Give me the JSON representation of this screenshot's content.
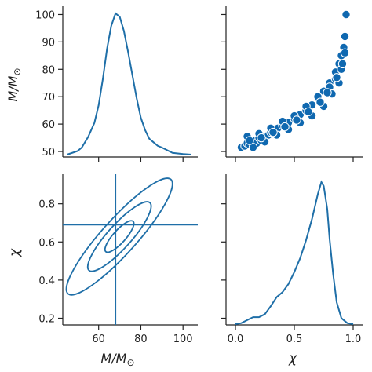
{
  "chart_data": {
    "type": "pairplot",
    "variables": [
      "M/M☉",
      "χ"
    ],
    "line_color": "#1f6fa8",
    "marker_color": "#0f68b0",
    "panels": [
      {
        "id": "mass-kde",
        "type": "line",
        "x": [
          45,
          50,
          52,
          55,
          58,
          60,
          62,
          64,
          66,
          68,
          70,
          72,
          74,
          76,
          78,
          80,
          82,
          84,
          86,
          88,
          90,
          95,
          100,
          104
        ],
        "density": [
          0.0,
          0.002,
          0.004,
          0.01,
          0.018,
          0.028,
          0.043,
          0.06,
          0.073,
          0.08,
          0.078,
          0.07,
          0.058,
          0.045,
          0.032,
          0.021,
          0.014,
          0.009,
          0.007,
          0.005,
          0.004,
          0.001,
          0.0003,
          0.0
        ],
        "xlim": [
          43,
          107
        ],
        "xticks": [
          60,
          80,
          100
        ],
        "ylim": [
          48,
          103
        ],
        "yticks": [
          50,
          60,
          70,
          80,
          90,
          100
        ],
        "ylabel": "M/M☉"
      },
      {
        "id": "mass-spin-scatter",
        "type": "scatter",
        "x": [
          0.05,
          0.08,
          0.1,
          0.12,
          0.15,
          0.18,
          0.2,
          0.22,
          0.25,
          0.28,
          0.3,
          0.33,
          0.36,
          0.4,
          0.45,
          0.5,
          0.55,
          0.6,
          0.65,
          0.7,
          0.75,
          0.8,
          0.85,
          0.88,
          0.9,
          0.92,
          0.93,
          0.94,
          0.1,
          0.2,
          0.3,
          0.4,
          0.5,
          0.6,
          0.7,
          0.8,
          0.85,
          0.9,
          0.15,
          0.25,
          0.35,
          0.45,
          0.55,
          0.65,
          0.75,
          0.82,
          0.88,
          0.91,
          0.93,
          0.12,
          0.22,
          0.32,
          0.42,
          0.52,
          0.62,
          0.72,
          0.78,
          0.86
        ],
        "y": [
          51.5,
          52,
          53,
          52.5,
          54,
          53,
          55,
          54,
          55.5,
          56,
          57,
          58,
          58.5,
          59.5,
          60.5,
          62,
          63.5,
          65,
          67,
          69.5,
          72,
          75,
          79,
          82,
          85,
          88,
          92,
          100,
          55.5,
          56.5,
          58.5,
          61,
          63,
          66.5,
          70,
          73.5,
          76.5,
          80,
          51.5,
          53.5,
          56,
          58,
          60.5,
          63,
          66.5,
          71,
          75,
          82,
          86,
          54,
          55,
          57,
          59,
          61.5,
          64.5,
          68,
          71.5,
          77
        ],
        "xlim": [
          -0.08,
          1.08
        ],
        "ylim": [
          48,
          103
        ]
      },
      {
        "id": "spin-mass-contour",
        "type": "contour",
        "levels": 3,
        "median": {
          "x": 68,
          "y": 0.69
        },
        "xlim": [
          43,
          107
        ],
        "xticks": [
          60,
          80,
          100
        ],
        "xlabel": "M/M☉",
        "ylim": [
          0.165,
          0.955
        ],
        "yticks": [
          0.2,
          0.4,
          0.6,
          0.8
        ],
        "ylabel": "χ"
      },
      {
        "id": "spin-kde",
        "type": "line",
        "x": [
          0.0,
          0.05,
          0.1,
          0.15,
          0.2,
          0.25,
          0.3,
          0.35,
          0.4,
          0.45,
          0.5,
          0.55,
          0.6,
          0.65,
          0.7,
          0.73,
          0.75,
          0.78,
          0.8,
          0.83,
          0.86,
          0.9,
          0.95,
          1.0
        ],
        "density": [
          0.0,
          0.01,
          0.04,
          0.07,
          0.07,
          0.1,
          0.18,
          0.27,
          0.32,
          0.4,
          0.52,
          0.66,
          0.84,
          1.05,
          1.3,
          1.42,
          1.38,
          1.15,
          0.85,
          0.5,
          0.22,
          0.06,
          0.01,
          0.0
        ],
        "xlim": [
          -0.08,
          1.08
        ],
        "xticks": [
          0.0,
          0.5,
          1.0
        ],
        "xlabel": "χ"
      }
    ]
  },
  "tick_labels": {
    "mass_y": [
      "50",
      "60",
      "70",
      "80",
      "90",
      "100"
    ],
    "spin_y": [
      "0.2",
      "0.4",
      "0.6",
      "0.8"
    ],
    "mass_x": [
      "60",
      "80",
      "100"
    ],
    "spin_x": [
      "0.0",
      "0.5",
      "1.0"
    ]
  },
  "labels": {
    "mass_axis": "M/M",
    "sun_symbol": "⊙",
    "spin_axis": "χ"
  }
}
